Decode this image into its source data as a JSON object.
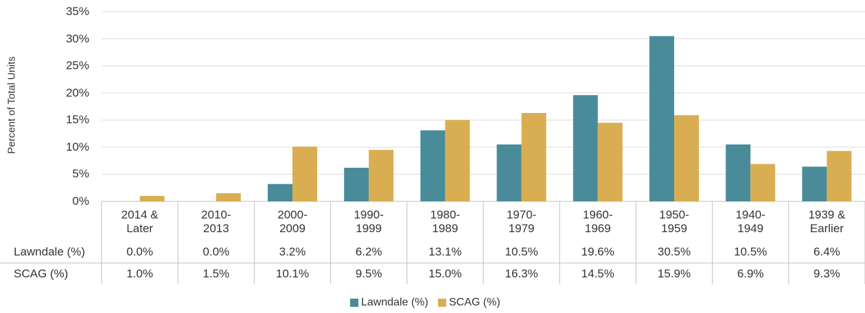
{
  "chart_data": {
    "type": "bar",
    "y_label": "Percent of Total Units",
    "categories": [
      "2014 & Later",
      "2010-2013",
      "2000-2009",
      "1990-1999",
      "1980-1989",
      "1970-1979",
      "1960-1969",
      "1950-1959",
      "1940-1949",
      "1939 & Earlier"
    ],
    "series": [
      {
        "name": "Lawndale (%)",
        "color": "#4a8b9a",
        "values": [
          0.0,
          0.0,
          3.2,
          6.2,
          13.1,
          10.5,
          19.6,
          30.5,
          10.5,
          6.4
        ],
        "value_labels": [
          "0.0%",
          "0.0%",
          "3.2%",
          "6.2%",
          "13.1%",
          "10.5%",
          "19.6%",
          "30.5%",
          "10.5%",
          "6.4%"
        ]
      },
      {
        "name": "SCAG (%)",
        "color": "#d9ae52",
        "values": [
          1.0,
          1.5,
          10.1,
          9.5,
          15.0,
          16.3,
          14.5,
          15.9,
          6.9,
          9.3
        ],
        "value_labels": [
          "1.0%",
          "1.5%",
          "10.1%",
          "9.5%",
          "15.0%",
          "16.3%",
          "14.5%",
          "15.9%",
          "6.9%",
          "9.3%"
        ]
      }
    ],
    "ylim": [
      0,
      35
    ],
    "yticks": [
      {
        "value": 0,
        "label": "0%"
      },
      {
        "value": 5,
        "label": "5%"
      },
      {
        "value": 10,
        "label": "10%"
      },
      {
        "value": 15,
        "label": "15%"
      },
      {
        "value": 20,
        "label": "20%"
      },
      {
        "value": 25,
        "label": "25%"
      },
      {
        "value": 30,
        "label": "30%"
      },
      {
        "value": 35,
        "label": "35%"
      }
    ],
    "grid": true,
    "legend": "bottom"
  }
}
